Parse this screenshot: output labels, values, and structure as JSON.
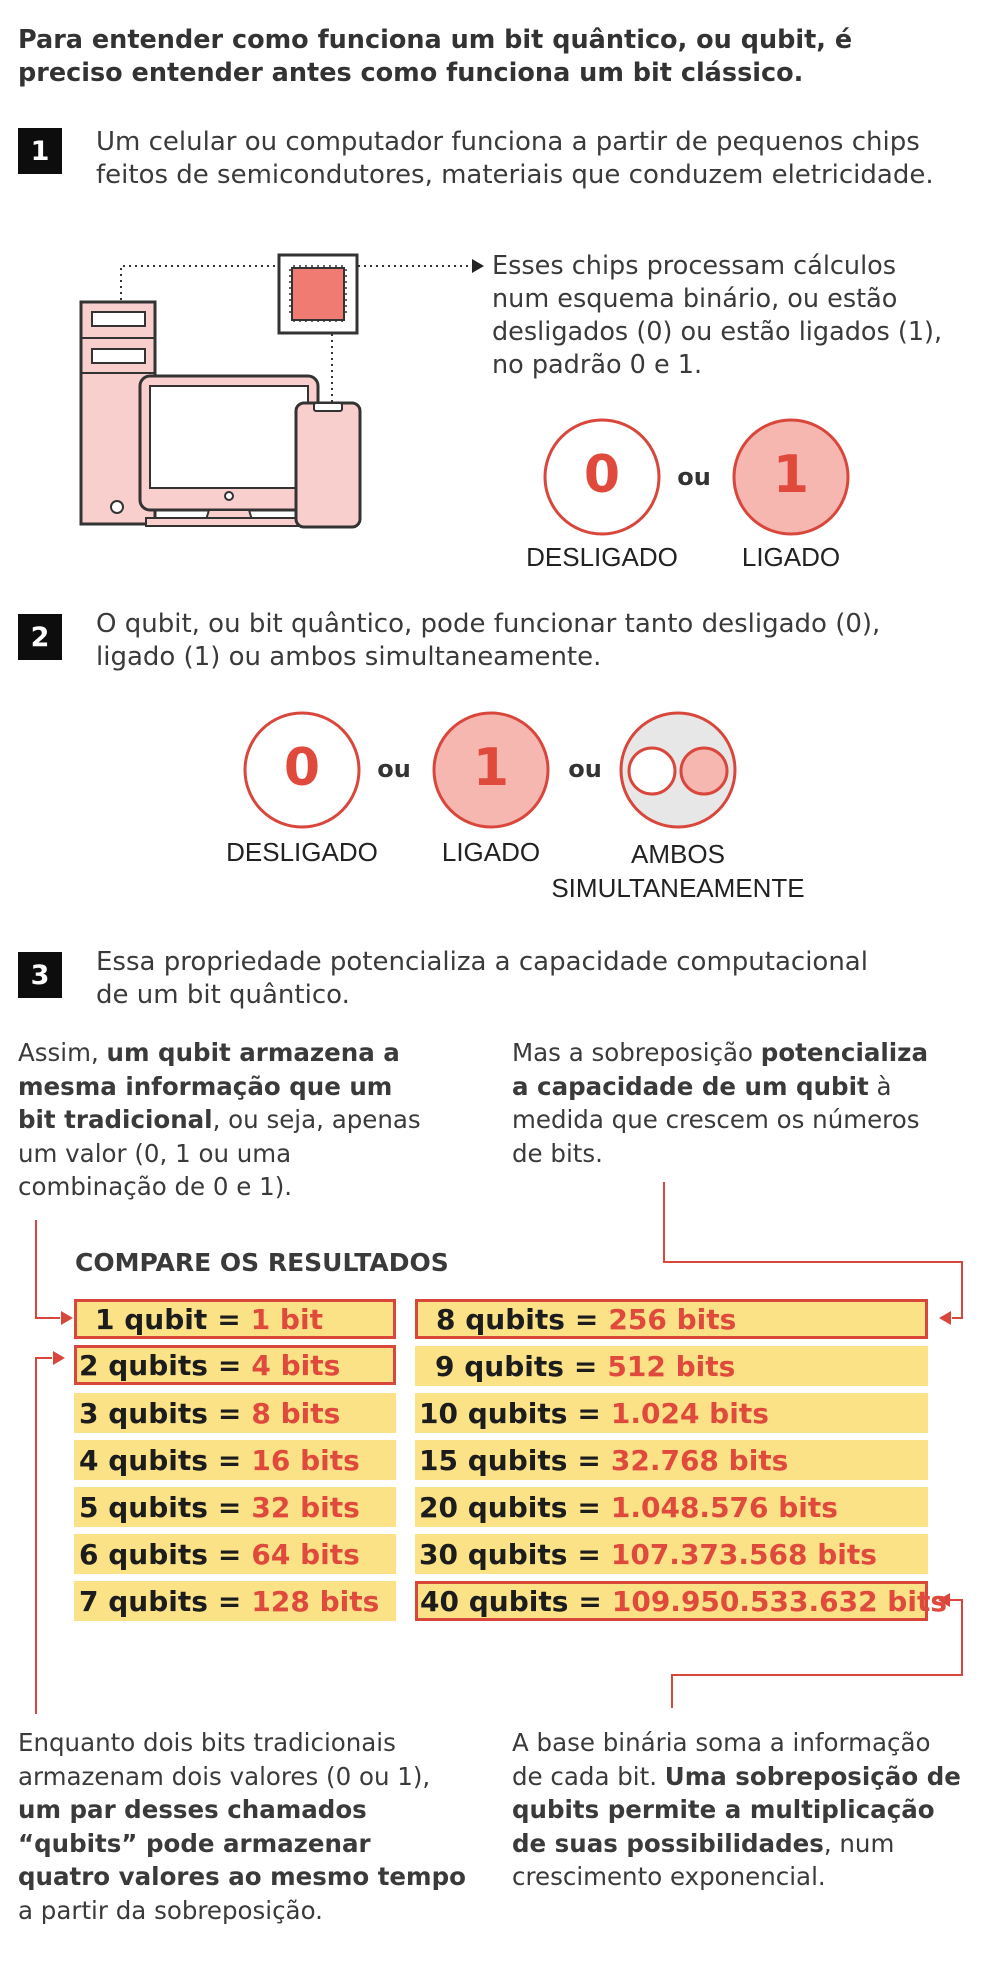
{
  "intro": "Para entender como funciona um bit quântico, ou qubit, é preciso entender antes como funciona um bit clássico.",
  "steps": [
    {
      "number": "1",
      "text": "Um celular ou computador funciona a partir de pequenos chips\nfeitos de semicondutores, materiais que conduzem eletricidade."
    },
    {
      "number": "2",
      "text": "O qubit, ou bit quântico, pode funcionar tanto desligado (0),\nligado (1) ou ambos simultaneamente."
    },
    {
      "number": "3",
      "text": "Essa propriedade potencializa a capacidade computacional\nde um bit quântico."
    }
  ],
  "chips_text": "Esses chips processam cálculos num esquema binário, ou estão desligados (0) ou estão ligados (1), no padrão 0 e 1.",
  "states": {
    "zero": "0",
    "one": "1",
    "ou": "ou",
    "off_label": "DESLIGADO",
    "on_label": "LIGADO",
    "both_label_line1": "AMBOS",
    "both_label_line2": "SIMULTANEAMENTE"
  },
  "left_top": {
    "t1": "Assim, ",
    "b1": "um qubit armazena a mesma informação que um bit tradicional",
    "t2": ", ou seja, apenas um valor (0, 1 ou uma combinação de 0 e 1)."
  },
  "right_top": {
    "t1": "Mas a sobreposição ",
    "b1": "potencializa a capacidade de um qubit",
    "t2": " à medida que crescem os números de bits."
  },
  "compare_title": "COMPARE OS RESULTADOS",
  "eq_sign": "=",
  "table_left": [
    {
      "qubits": "1 qubit",
      "bits": "1 bit"
    },
    {
      "qubits": "2 qubits",
      "bits": "4 bits"
    },
    {
      "qubits": "3 qubits",
      "bits": "8 bits"
    },
    {
      "qubits": "4 qubits",
      "bits": "16 bits"
    },
    {
      "qubits": "5 qubits",
      "bits": "32 bits"
    },
    {
      "qubits": "6 qubits",
      "bits": "64 bits"
    },
    {
      "qubits": "7 qubits",
      "bits": "128 bits"
    }
  ],
  "table_right": [
    {
      "qubits": "8 qubits",
      "bits": "256 bits"
    },
    {
      "qubits": "9 qubits",
      "bits": "512 bits"
    },
    {
      "qubits": "10 qubits",
      "bits": "1.024 bits"
    },
    {
      "qubits": "15 qubits",
      "bits": "32.768 bits"
    },
    {
      "qubits": "20 qubits",
      "bits": "1.048.576 bits"
    },
    {
      "qubits": "30 qubits",
      "bits": "107.373.568 bits"
    },
    {
      "qubits": "40 qubits",
      "bits": "109.950.533.632 bits"
    }
  ],
  "left_bottom": {
    "t1": "Enquanto dois bits tradicionais armazenam dois valores (0 ou 1), ",
    "b1": "um par desses chamados “qubits” pode armazenar quatro valores ao mesmo tempo",
    "t2": " a partir da sobreposição."
  },
  "right_bottom": {
    "t1": "A base binária soma a informação de cada bit. ",
    "b1": "Uma sobreposição de qubits permite a multiplicação de suas possibilidades",
    "t2": ", num crescimento exponencial."
  },
  "colors": {
    "accent_red": "#d9473c",
    "circle_fill": "#f7b7b1",
    "highlight_yellow": "#fbe287",
    "device_fill": "#f9cfcd",
    "chip_fill": "#f07b72"
  }
}
